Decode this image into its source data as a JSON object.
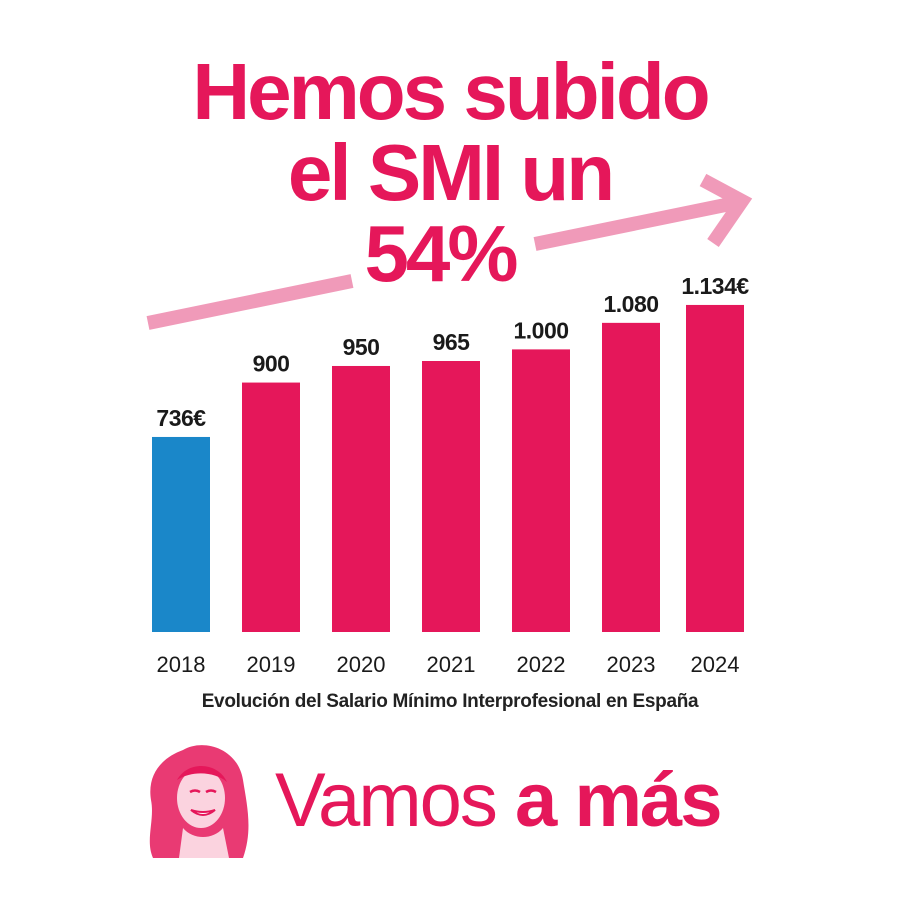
{
  "headline": {
    "line1": "Hemos subido",
    "line2": "el SMI un",
    "line3": "54%"
  },
  "chart_data": {
    "type": "bar",
    "categories": [
      "2018",
      "2019",
      "2020",
      "2021",
      "2022",
      "2023",
      "2024"
    ],
    "values": [
      736,
      900,
      950,
      965,
      1000,
      1080,
      1134
    ],
    "data_labels": [
      "736€",
      "900",
      "950",
      "965",
      "1.000",
      "1.080",
      "1.134€"
    ],
    "title": "",
    "caption": "Evolución del Salario Mínimo Interprofesional en España",
    "xlabel": "",
    "ylabel": "",
    "ylim": [
      148,
      1134
    ],
    "grid": false,
    "colors": {
      "highlight": "#1a87c9",
      "default": "#e5175a",
      "arrow": "#f09ab9"
    },
    "highlight_category": "2018"
  },
  "footer": {
    "slogan_light": "Vamos",
    "slogan_bold_a": "a",
    "slogan_bold_b": "más",
    "portrait": "portrait-illustration"
  }
}
